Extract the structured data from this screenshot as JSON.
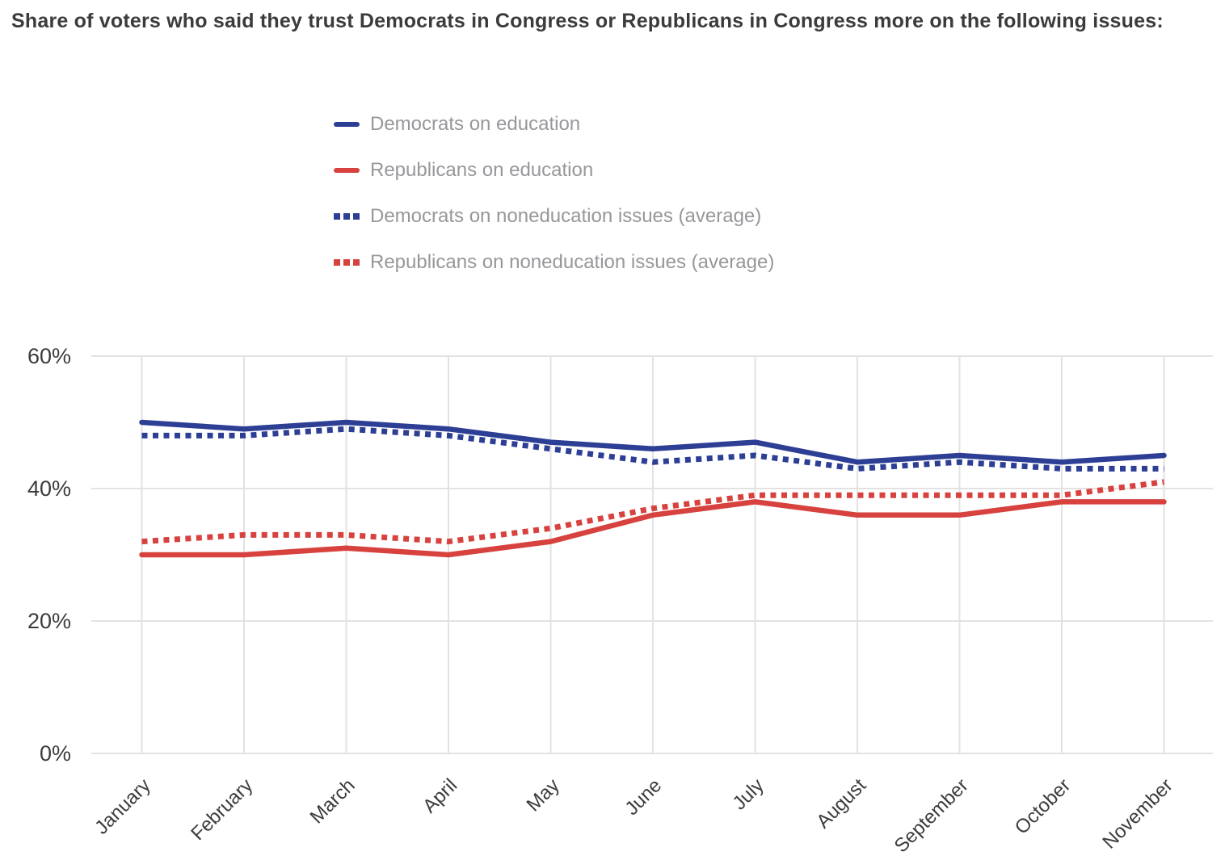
{
  "title": "Share of voters who said they trust Democrats in Congress or Republicans in Congress more on the following issues:",
  "chart_data": {
    "type": "line",
    "title": "Share of voters who said they trust Democrats in Congress or Republicans in Congress more on the following issues:",
    "x": [
      "January",
      "February",
      "March",
      "April",
      "May",
      "June",
      "July",
      "August",
      "September",
      "October",
      "November"
    ],
    "xlabel": "",
    "ylabel": "",
    "ylim": [
      0,
      60
    ],
    "yticks": [
      0,
      20,
      40,
      60
    ],
    "ytick_labels": [
      "0%",
      "20%",
      "40%",
      "60%"
    ],
    "grid": true,
    "legend_position": "top-center",
    "series": [
      {
        "name": "Democrats on education",
        "color": "#2d3f94",
        "line_style": "solid",
        "values": [
          50,
          49,
          50,
          49,
          47,
          46,
          47,
          44,
          45,
          44,
          45
        ]
      },
      {
        "name": "Republicans on education",
        "color": "#d7423e",
        "line_style": "solid",
        "values": [
          30,
          30,
          31,
          30,
          32,
          36,
          38,
          36,
          36,
          38,
          38
        ]
      },
      {
        "name": "Democrats on noneducation issues (average)",
        "color": "#2d3f94",
        "line_style": "dotted",
        "values": [
          48,
          48,
          49,
          48,
          46,
          44,
          45,
          43,
          44,
          43,
          43
        ]
      },
      {
        "name": "Republicans on noneducation issues (average)",
        "color": "#d7423e",
        "line_style": "dotted",
        "values": [
          32,
          33,
          33,
          32,
          34,
          37,
          39,
          39,
          39,
          39,
          41
        ]
      }
    ]
  },
  "colors": {
    "democrat_blue": "#2d3f94",
    "republican_red": "#d7423e",
    "grid": "#e2e2e2",
    "axis_text": "#3c3c3c",
    "legend_text": "#95979a",
    "title_text": "#3b3b3b"
  }
}
